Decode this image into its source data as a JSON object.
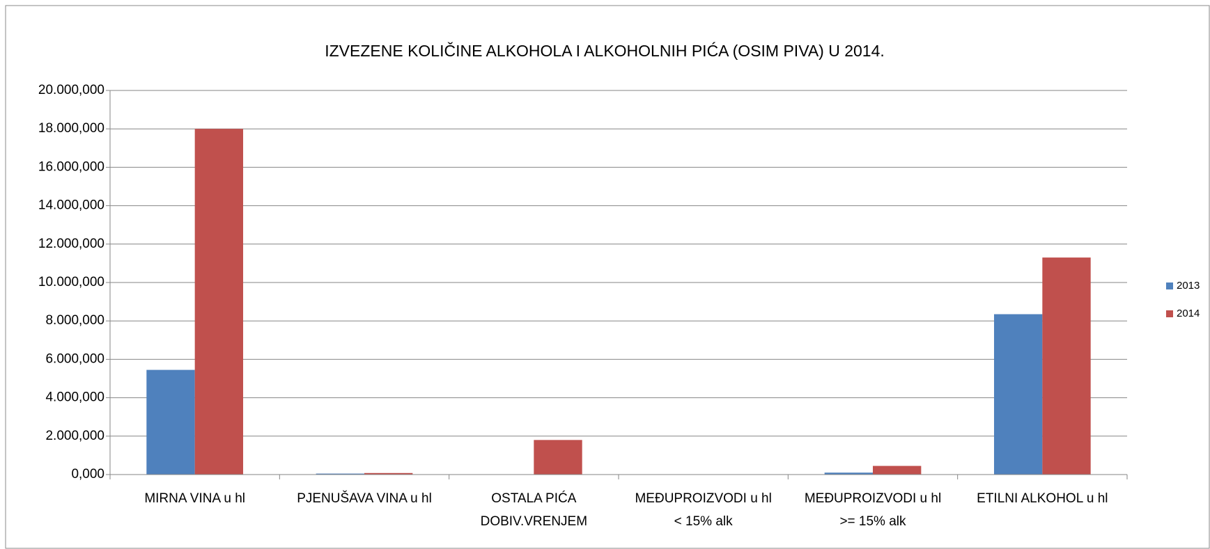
{
  "chart_data": {
    "type": "bar",
    "title": "IZVEZENE KOLIČINE ALKOHOLA I ALKOHOLNIH PIĆA (OSIM PIVA)  U 2014.",
    "categories": [
      "MIRNA VINA u hl",
      "PJENUŠAVA VINA u hl",
      "OSTALA PIĆA\nDOBIV.VRENJEM",
      "MEĐUPROIZVODI u hl\n<  15% alk",
      "MEĐUPROIZVODI u hl\n>= 15% alk",
      "ETILNI ALKOHOL u hl"
    ],
    "series": [
      {
        "name": "2013",
        "color": "#4f81bd",
        "values": [
          5450000,
          50000,
          10000,
          0,
          100000,
          8350000
        ]
      },
      {
        "name": "2014",
        "color": "#c0504d",
        "values": [
          18000000,
          80000,
          1800000,
          0,
          450000,
          11300000
        ]
      }
    ],
    "ylim": [
      0,
      20000000
    ],
    "yticks": [
      {
        "value": 0,
        "label": "0,000"
      },
      {
        "value": 2000000,
        "label": "2.000,000"
      },
      {
        "value": 4000000,
        "label": "4.000,000"
      },
      {
        "value": 6000000,
        "label": "6.000,000"
      },
      {
        "value": 8000000,
        "label": "8.000,000"
      },
      {
        "value": 10000000,
        "label": "10.000,000"
      },
      {
        "value": 12000000,
        "label": "12.000,000"
      },
      {
        "value": 14000000,
        "label": "14.000,000"
      },
      {
        "value": 16000000,
        "label": "16.000,000"
      },
      {
        "value": 18000000,
        "label": "18.000,000"
      },
      {
        "value": 20000000,
        "label": "20.000,000"
      }
    ],
    "grid": true,
    "legend": "right"
  }
}
